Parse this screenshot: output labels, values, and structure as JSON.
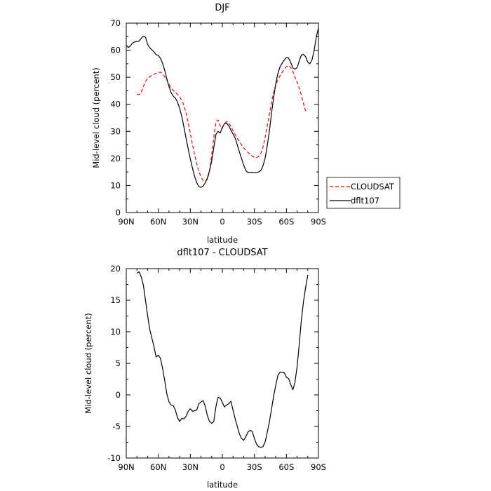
{
  "chart_data": [
    {
      "type": "line",
      "title": "DJF",
      "xlabel": "latitude",
      "ylabel": "Mid-level cloud (percent)",
      "xlim": [
        -90,
        90
      ],
      "ylim": [
        0,
        70
      ],
      "x_ticks": [
        {
          "value": -90,
          "label": "90N"
        },
        {
          "value": -60,
          "label": "60N"
        },
        {
          "value": -30,
          "label": "30N"
        },
        {
          "value": 0,
          "label": "0"
        },
        {
          "value": 30,
          "label": "30S"
        },
        {
          "value": 60,
          "label": "60S"
        },
        {
          "value": 90,
          "label": "90S"
        }
      ],
      "y_ticks": [
        0,
        10,
        20,
        30,
        40,
        50,
        60,
        70
      ],
      "legend": {
        "placement": "right"
      },
      "series": [
        {
          "name": "CLOUDSAT",
          "color": "#ff0000",
          "style": "dashed",
          "x": [
            -80,
            -78,
            -76,
            -74,
            -72,
            -70,
            -66,
            -62,
            -58,
            -56,
            -52,
            -48,
            -44,
            -40,
            -37,
            -34,
            -32,
            -30,
            -28,
            -26,
            -24,
            -22,
            -20,
            -18,
            -16,
            -14,
            -12,
            -10,
            -8,
            -6,
            -4,
            -2,
            0,
            2,
            4,
            6,
            8,
            10,
            12,
            14,
            16,
            18,
            20,
            22,
            24,
            26,
            28,
            30,
            32,
            34,
            36,
            38,
            40,
            42,
            44,
            46,
            48,
            50,
            52,
            54,
            56,
            58,
            60,
            62,
            64,
            66,
            68,
            70,
            72,
            74,
            76,
            78,
            80
          ],
          "y": [
            43.7,
            43.5,
            44.5,
            46.5,
            48.4,
            49.7,
            50.7,
            51.5,
            51.9,
            51.3,
            49.0,
            45.9,
            44.5,
            42.8,
            40.6,
            37.0,
            33.2,
            29.2,
            25.2,
            21.4,
            18.0,
            15.2,
            13.2,
            11.8,
            11.5,
            12.3,
            15.2,
            21.2,
            27.9,
            33.5,
            34.2,
            32.0,
            31.2,
            32.9,
            33.6,
            33.2,
            31.8,
            30.2,
            28.7,
            27.4,
            26.2,
            25.0,
            23.9,
            23.0,
            22.2,
            21.5,
            20.9,
            20.4,
            20.3,
            20.7,
            21.8,
            24.0,
            27.6,
            31.8,
            36.2,
            40.6,
            44.4,
            47.2,
            49.1,
            50.5,
            51.8,
            53.0,
            53.9,
            54.3,
            53.6,
            52.2,
            50.0,
            48.2,
            46.0,
            43.4,
            40.2,
            37.6,
            38.2
          ]
        },
        {
          "name": "dflt107",
          "color": "#000000",
          "style": "solid",
          "x": [
            -90,
            -88,
            -86,
            -84,
            -82,
            -80,
            -78,
            -76,
            -74,
            -72,
            -70,
            -68,
            -66,
            -64,
            -62,
            -60,
            -58,
            -56,
            -54,
            -52,
            -50,
            -48,
            -46,
            -44,
            -42,
            -40,
            -38,
            -36,
            -34,
            -32,
            -30,
            -28,
            -26,
            -24,
            -22,
            -20,
            -18,
            -16,
            -14,
            -12,
            -10,
            -8,
            -6,
            -4,
            -2,
            0,
            2,
            4,
            6,
            8,
            10,
            12,
            14,
            16,
            18,
            20,
            22,
            24,
            26,
            28,
            30,
            32,
            34,
            36,
            38,
            40,
            42,
            44,
            46,
            48,
            50,
            52,
            54,
            56,
            58,
            60,
            62,
            64,
            66,
            68,
            70,
            72,
            74,
            76,
            78,
            80,
            82,
            84,
            86,
            88,
            90
          ],
          "y": [
            61.8,
            61.0,
            61.7,
            62.7,
            63.1,
            63.2,
            63.4,
            64.4,
            65.2,
            64.8,
            62.2,
            60.9,
            60.1,
            59.4,
            58.3,
            58.1,
            57.0,
            55.2,
            52.6,
            49.5,
            46.6,
            44.3,
            43.0,
            42.3,
            40.8,
            38.5,
            35.5,
            31.6,
            27.5,
            23.6,
            19.8,
            16.4,
            13.4,
            11.0,
            9.6,
            9.3,
            9.8,
            11.0,
            12.8,
            15.5,
            19.0,
            24.0,
            28.9,
            30.0,
            29.4,
            31.5,
            32.8,
            33.0,
            32.1,
            30.5,
            29.0,
            27.5,
            25.0,
            22.3,
            20.0,
            17.5,
            15.5,
            14.8,
            14.9,
            14.8,
            14.7,
            14.8,
            15.0,
            15.5,
            17.2,
            20.0,
            24.5,
            30.0,
            36.5,
            42.5,
            47.5,
            51.5,
            53.8,
            55.2,
            56.4,
            57.3,
            57.1,
            55.5,
            53.4,
            53.0,
            53.6,
            56.0,
            58.2,
            58.5,
            57.6,
            55.6,
            55.0,
            56.5,
            60.0,
            65.0,
            68.2
          ]
        }
      ]
    },
    {
      "type": "line",
      "title": "dflt107 - CLOUDSAT",
      "xlabel": "latitude",
      "ylabel": "Mid-level cloud (percent)",
      "xlim": [
        -90,
        90
      ],
      "ylim": [
        -10,
        20
      ],
      "x_ticks": [
        {
          "value": -90,
          "label": "90N"
        },
        {
          "value": -60,
          "label": "60N"
        },
        {
          "value": -30,
          "label": "30N"
        },
        {
          "value": 0,
          "label": "0"
        },
        {
          "value": 30,
          "label": "30S"
        },
        {
          "value": 60,
          "label": "60S"
        },
        {
          "value": 90,
          "label": "90S"
        }
      ],
      "y_ticks": [
        -10,
        -5,
        0,
        5,
        10,
        15,
        20
      ],
      "series": [
        {
          "color": "#000000",
          "style": "solid",
          "x": [
            -80,
            -78,
            -76,
            -74,
            -72,
            -70,
            -68,
            -66,
            -64,
            -62,
            -60,
            -58,
            -56,
            -54,
            -52,
            -50,
            -48,
            -46,
            -44,
            -42,
            -40,
            -38,
            -36,
            -34,
            -32,
            -30,
            -28,
            -26,
            -24,
            -22,
            -20,
            -18,
            -16,
            -14,
            -12,
            -10,
            -8,
            -6,
            -4,
            -2,
            0,
            2,
            4,
            6,
            8,
            10,
            12,
            14,
            16,
            18,
            20,
            22,
            24,
            26,
            28,
            30,
            32,
            34,
            36,
            38,
            40,
            42,
            44,
            46,
            48,
            50,
            52,
            54,
            56,
            58,
            60,
            62,
            64,
            66,
            68,
            70,
            72,
            74,
            76,
            78,
            80
          ],
          "y": [
            19.3,
            19.5,
            18.7,
            17.4,
            15.0,
            12.6,
            10.4,
            9.0,
            7.6,
            6.0,
            6.3,
            5.8,
            4.2,
            2.3,
            0.2,
            -1.1,
            -1.6,
            -1.7,
            -2.4,
            -3.6,
            -4.2,
            -3.7,
            -3.8,
            -3.4,
            -2.6,
            -2.2,
            -2.6,
            -2.5,
            -2.4,
            -1.4,
            -1.1,
            -0.9,
            -1.8,
            -3.3,
            -4.2,
            -4.5,
            -4.2,
            -1.8,
            -0.4,
            -0.5,
            -1.2,
            -1.9,
            -1.6,
            -1.4,
            -1.0,
            -2.4,
            -3.8,
            -5.0,
            -6.2,
            -6.9,
            -7.2,
            -6.6,
            -5.9,
            -5.6,
            -5.8,
            -6.9,
            -7.8,
            -8.2,
            -8.3,
            -8.2,
            -7.5,
            -6.0,
            -4.3,
            -2.3,
            -0.2,
            1.5,
            3.1,
            3.6,
            3.6,
            3.5,
            2.8,
            2.6,
            1.7,
            0.8,
            2.0,
            4.5,
            8.0,
            11.8,
            14.8,
            17.0,
            19.0
          ]
        }
      ]
    }
  ]
}
